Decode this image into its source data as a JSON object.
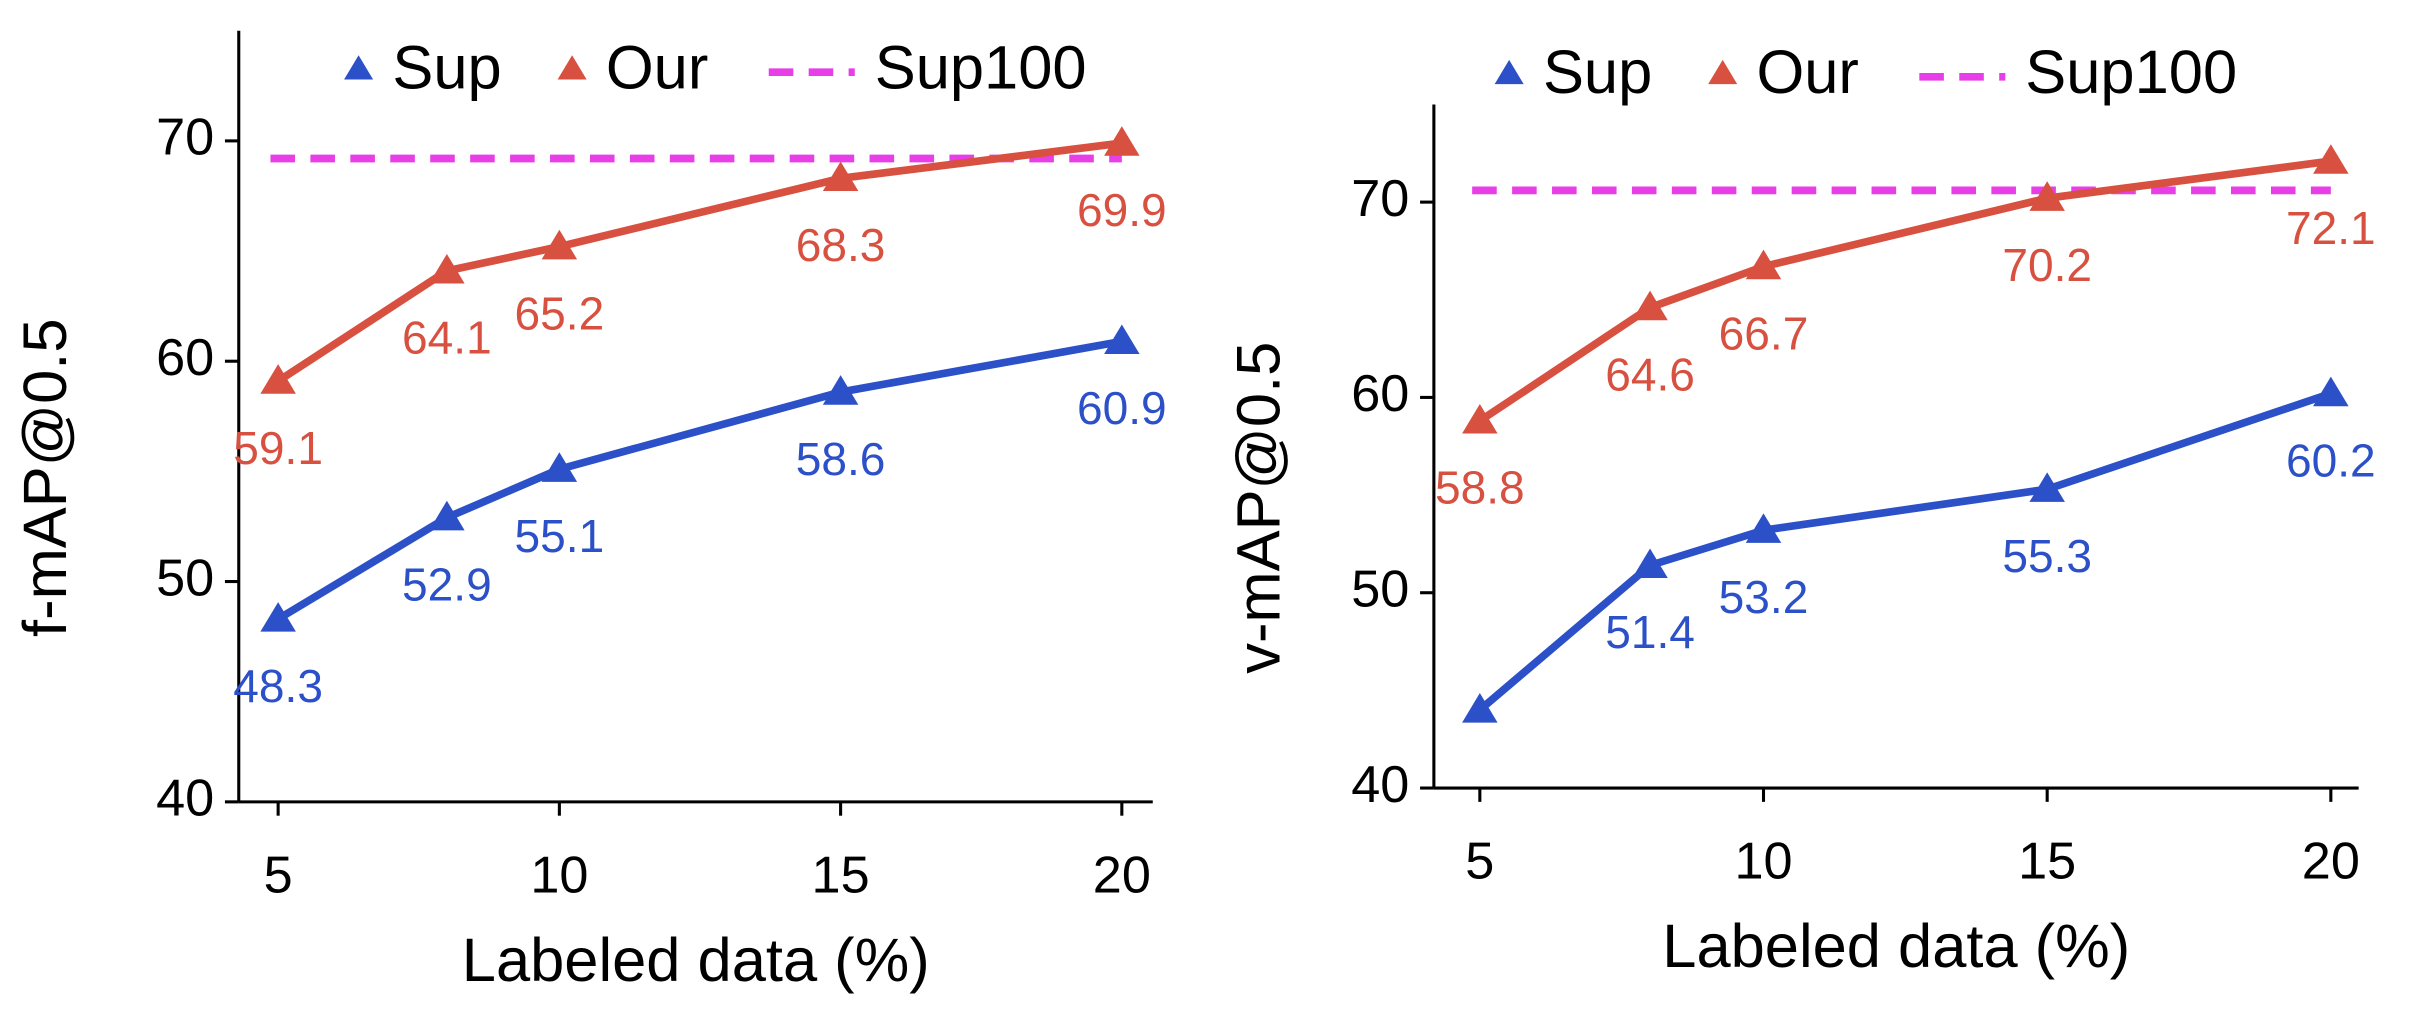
{
  "chart_data": [
    {
      "type": "line",
      "xlabel": "Labeled data (%)",
      "ylabel": "f-mAP@0.5",
      "x": [
        5,
        8,
        10,
        15,
        20
      ],
      "series": [
        {
          "name": "Sup",
          "color": "#2b50c8",
          "values": [
            48.3,
            52.9,
            55.1,
            58.6,
            60.9
          ]
        },
        {
          "name": "Our",
          "color": "#d8503f",
          "values": [
            59.1,
            64.1,
            65.2,
            68.3,
            69.9
          ]
        }
      ],
      "reference": {
        "name": "Sup100",
        "color": "#e83ee8",
        "value": 69.2
      },
      "xlim": [
        4.3,
        20.55
      ],
      "xticks": [
        5,
        10,
        15,
        20
      ],
      "ylim": [
        40,
        75
      ],
      "yticks": [
        40,
        50,
        60,
        70
      ],
      "grid": false
    },
    {
      "type": "line",
      "xlabel": "Labeled data (%)",
      "ylabel": "v-mAP@0.5",
      "x": [
        5,
        8,
        10,
        15,
        20
      ],
      "series": [
        {
          "name": "Sup",
          "color": "#2b50c8",
          "values": [
            44,
            51.4,
            53.2,
            55.3,
            60.2
          ],
          "value_labels": [
            null,
            "51.4",
            "53.2",
            "55.3",
            "60.2"
          ]
        },
        {
          "name": "Our",
          "color": "#d8503f",
          "values": [
            58.8,
            64.6,
            66.7,
            70.2,
            72.1
          ]
        }
      ],
      "reference": {
        "name": "Sup100",
        "color": "#e83ee8",
        "value": 70.6
      },
      "xlim": [
        4.19,
        20.49
      ],
      "xticks": [
        5,
        10,
        15,
        20
      ],
      "ylim": [
        40,
        75
      ],
      "yticks": [
        40,
        50,
        60,
        70
      ],
      "grid": false
    }
  ]
}
